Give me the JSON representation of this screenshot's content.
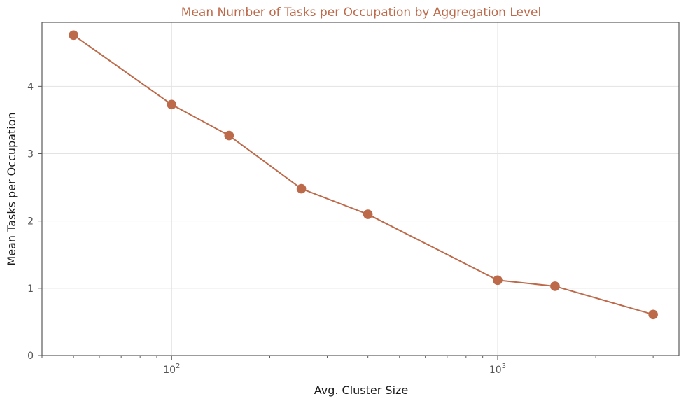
{
  "chart_data": {
    "type": "line",
    "title": "Mean Number of Tasks per Occupation by Aggregation Level",
    "xlabel": "Avg. Cluster Size",
    "ylabel": "Mean Tasks per Occupation",
    "x_scale": "log",
    "xlim": [
      40,
      3600
    ],
    "ylim": [
      0,
      4.95
    ],
    "x_ticks": [
      {
        "value": 100,
        "base": "10",
        "exp": "2"
      },
      {
        "value": 1000,
        "base": "10",
        "exp": "3"
      }
    ],
    "y_ticks": [
      0,
      1,
      2,
      3,
      4
    ],
    "grid": true,
    "color": "#bd6a4b",
    "series": [
      {
        "x": [
          50,
          100,
          150,
          250,
          400,
          1000,
          1500,
          3000
        ],
        "y": [
          4.76,
          3.73,
          3.27,
          2.48,
          2.1,
          1.12,
          1.03,
          0.61
        ]
      }
    ]
  }
}
